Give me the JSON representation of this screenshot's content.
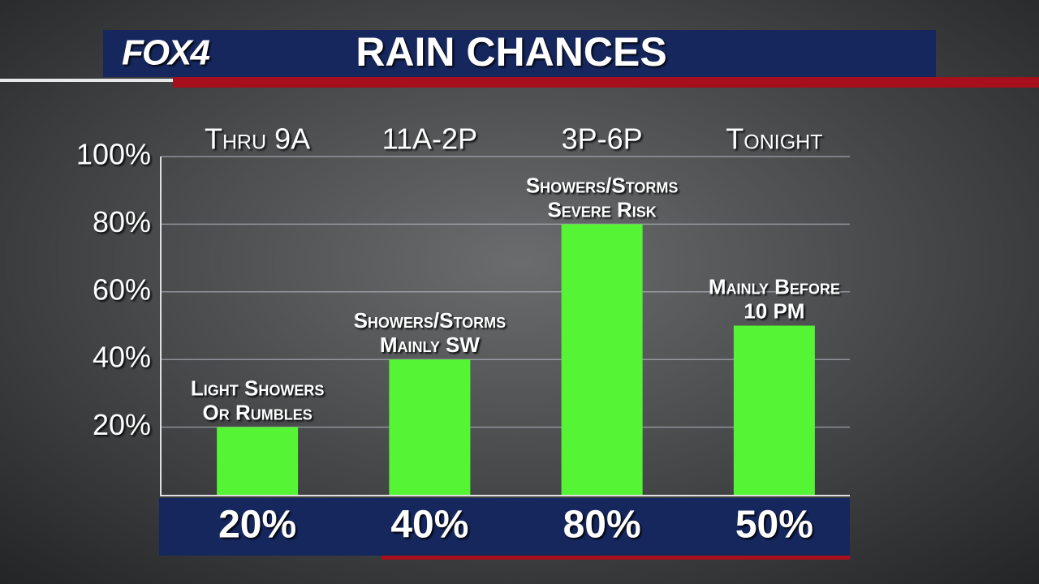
{
  "logo": "FOX4",
  "chart_data": {
    "type": "bar",
    "title": "RAIN CHANCES",
    "categories": [
      "Thru 9A",
      "11A-2P",
      "3P-6P",
      "Tonight"
    ],
    "values": [
      20,
      40,
      80,
      50
    ],
    "value_labels": [
      "20%",
      "40%",
      "80%",
      "50%"
    ],
    "annotations": [
      [
        "Light Showers",
        "Or Rumbles"
      ],
      [
        "Showers/Storms",
        "Mainly SW"
      ],
      [
        "Showers/Storms",
        "Severe Risk"
      ],
      [
        "Mainly Before",
        "10 PM"
      ]
    ],
    "color": "#55f535",
    "ylim": [
      0,
      100
    ],
    "yticks": [
      {
        "value": 20,
        "label": "20%"
      },
      {
        "value": 40,
        "label": "40%"
      },
      {
        "value": 60,
        "label": "60%"
      },
      {
        "value": 80,
        "label": "80%"
      },
      {
        "value": 100,
        "label": "100%"
      }
    ],
    "grid": true
  }
}
